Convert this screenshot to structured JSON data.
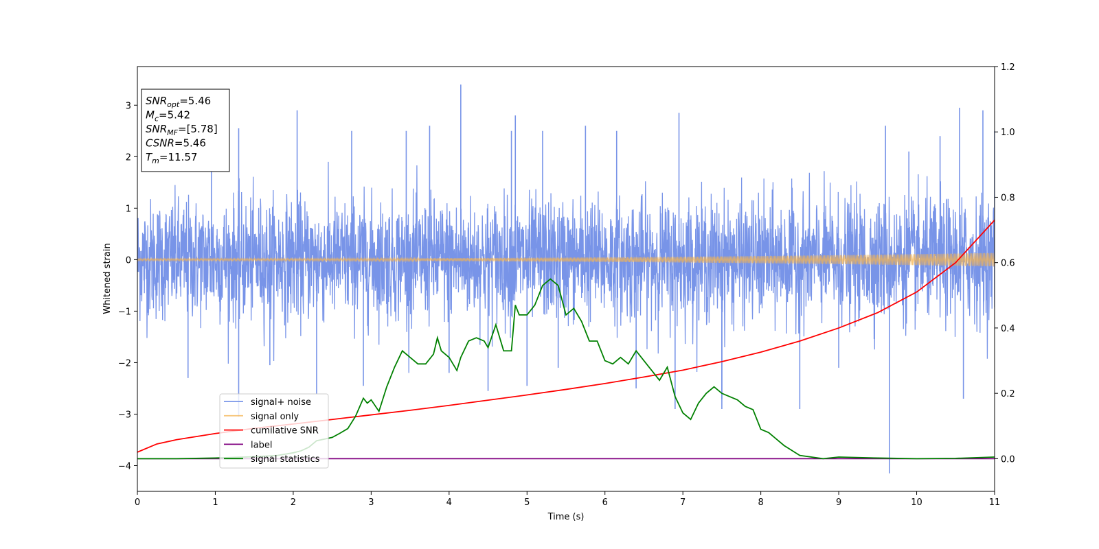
{
  "chart_data": {
    "type": "line",
    "xlabel": "Time (s)",
    "ylabel": "Whitened strain",
    "y2label": "",
    "xlim": [
      0,
      11
    ],
    "ylim": [
      -4.5,
      3.75
    ],
    "y2lim": [
      -0.1,
      1.2
    ],
    "x_ticks": [
      0,
      1,
      2,
      3,
      4,
      5,
      6,
      7,
      8,
      9,
      10,
      11
    ],
    "y_ticks": [
      -4,
      -3,
      -2,
      -1,
      0,
      1,
      2,
      3
    ],
    "y2_ticks": [
      0.0,
      0.2,
      0.4,
      0.6,
      0.8,
      1.0,
      1.2
    ],
    "grid": false,
    "legend_position": "lower-left",
    "annotation": {
      "lines": [
        {
          "main": "SNR",
          "sub": "opt",
          "value": "=5.46"
        },
        {
          "main": "M",
          "sub": "c",
          "value": "=5.42"
        },
        {
          "main": "SNR",
          "sub": "MF",
          "value": "=[5.78]"
        },
        {
          "main": "CSNR",
          "sub": "",
          "value": "=5.46"
        },
        {
          "main": "T",
          "sub": "m",
          "value": "=11.57"
        }
      ]
    },
    "series": [
      {
        "name": "signal+ noise",
        "color": "#7894e8",
        "axis": "left",
        "kind": "noise",
        "sigma": 0.58,
        "x_range": [
          0,
          11
        ],
        "spikes": [
          {
            "x": 0.65,
            "y": -2.3
          },
          {
            "x": 0.95,
            "y": 2.5
          },
          {
            "x": 1.3,
            "y": 2.55
          },
          {
            "x": 1.3,
            "y": -3.05
          },
          {
            "x": 1.7,
            "y": -2.05
          },
          {
            "x": 2.05,
            "y": 2.9
          },
          {
            "x": 2.3,
            "y": -2.6
          },
          {
            "x": 2.75,
            "y": 2.5
          },
          {
            "x": 2.9,
            "y": -2.45
          },
          {
            "x": 3.45,
            "y": 2.5
          },
          {
            "x": 3.75,
            "y": 2.6
          },
          {
            "x": 4.0,
            "y": -2.2
          },
          {
            "x": 4.15,
            "y": 3.4
          },
          {
            "x": 4.5,
            "y": -2.55
          },
          {
            "x": 4.8,
            "y": 2.5
          },
          {
            "x": 4.85,
            "y": 2.8
          },
          {
            "x": 5.0,
            "y": -2.45
          },
          {
            "x": 5.2,
            "y": 2.5
          },
          {
            "x": 5.4,
            "y": -2.1
          },
          {
            "x": 5.75,
            "y": 2.6
          },
          {
            "x": 6.15,
            "y": 2.5
          },
          {
            "x": 6.4,
            "y": -2.5
          },
          {
            "x": 6.9,
            "y": -2.9
          },
          {
            "x": 6.95,
            "y": 2.85
          },
          {
            "x": 7.5,
            "y": -2.9
          },
          {
            "x": 7.5,
            "y": -2.7
          },
          {
            "x": 8.5,
            "y": -2.9
          },
          {
            "x": 9.0,
            "y": -2.1
          },
          {
            "x": 9.6,
            "y": 2.6
          },
          {
            "x": 9.65,
            "y": -4.15
          },
          {
            "x": 9.9,
            "y": 2.1
          },
          {
            "x": 10.3,
            "y": 2.4
          },
          {
            "x": 10.55,
            "y": 2.95
          },
          {
            "x": 10.6,
            "y": -2.7
          },
          {
            "x": 10.85,
            "y": 2.9
          },
          {
            "x": 11.0,
            "y": 2.5
          }
        ]
      },
      {
        "name": "signal only",
        "color": "#f5b44f",
        "axis": "left",
        "kind": "chirp",
        "amplitude_start": 0.02,
        "amplitude_end": 0.13,
        "x_range": [
          0,
          11
        ]
      },
      {
        "name": "cumilative SNR",
        "color": "#ff0000",
        "axis": "right",
        "kind": "line",
        "x": [
          0,
          0.25,
          0.5,
          1,
          1.5,
          2,
          2.5,
          3,
          3.5,
          4,
          4.5,
          5,
          5.5,
          6,
          6.5,
          7,
          7.5,
          8,
          8.5,
          9,
          9.5,
          10,
          10.5,
          11
        ],
        "y": [
          0.02,
          0.045,
          0.058,
          0.077,
          0.093,
          0.106,
          0.12,
          0.134,
          0.148,
          0.163,
          0.179,
          0.195,
          0.212,
          0.23,
          0.25,
          0.271,
          0.297,
          0.326,
          0.36,
          0.4,
          0.447,
          0.51,
          0.6,
          0.73
        ]
      },
      {
        "name": "label",
        "color": "#800080",
        "axis": "right",
        "kind": "line",
        "x": [
          0,
          11
        ],
        "y": [
          0.0,
          0.0
        ]
      },
      {
        "name": "signal statistics",
        "color": "#008000",
        "axis": "right",
        "kind": "line",
        "x": [
          0,
          0.5,
          1.0,
          1.5,
          1.8,
          2.0,
          2.1,
          2.2,
          2.3,
          2.4,
          2.5,
          2.6,
          2.7,
          2.8,
          2.9,
          2.95,
          3.0,
          3.1,
          3.2,
          3.3,
          3.4,
          3.5,
          3.6,
          3.7,
          3.8,
          3.85,
          3.9,
          4.0,
          4.1,
          4.15,
          4.25,
          4.35,
          4.45,
          4.5,
          4.6,
          4.7,
          4.8,
          4.85,
          4.9,
          5.0,
          5.1,
          5.2,
          5.3,
          5.4,
          5.5,
          5.6,
          5.7,
          5.8,
          5.9,
          6.0,
          6.1,
          6.2,
          6.3,
          6.4,
          6.5,
          6.6,
          6.7,
          6.8,
          6.9,
          7.0,
          7.1,
          7.2,
          7.3,
          7.4,
          7.5,
          7.6,
          7.7,
          7.8,
          7.9,
          8.0,
          8.1,
          8.2,
          8.3,
          8.5,
          8.8,
          9.0,
          9.5,
          10.0,
          10.5,
          11.0
        ],
        "y": [
          0.0,
          0.0,
          0.002,
          0.006,
          0.01,
          0.018,
          0.024,
          0.035,
          0.055,
          0.06,
          0.065,
          0.078,
          0.092,
          0.13,
          0.185,
          0.17,
          0.18,
          0.145,
          0.22,
          0.28,
          0.33,
          0.31,
          0.29,
          0.29,
          0.32,
          0.37,
          0.33,
          0.31,
          0.27,
          0.31,
          0.36,
          0.37,
          0.36,
          0.34,
          0.41,
          0.33,
          0.33,
          0.47,
          0.44,
          0.44,
          0.47,
          0.53,
          0.55,
          0.53,
          0.44,
          0.46,
          0.42,
          0.36,
          0.36,
          0.3,
          0.29,
          0.31,
          0.29,
          0.33,
          0.3,
          0.27,
          0.24,
          0.28,
          0.19,
          0.14,
          0.12,
          0.17,
          0.2,
          0.22,
          0.2,
          0.19,
          0.18,
          0.16,
          0.15,
          0.09,
          0.08,
          0.06,
          0.04,
          0.01,
          0.0,
          0.005,
          0.002,
          0.0,
          0.001,
          0.005
        ]
      }
    ]
  }
}
